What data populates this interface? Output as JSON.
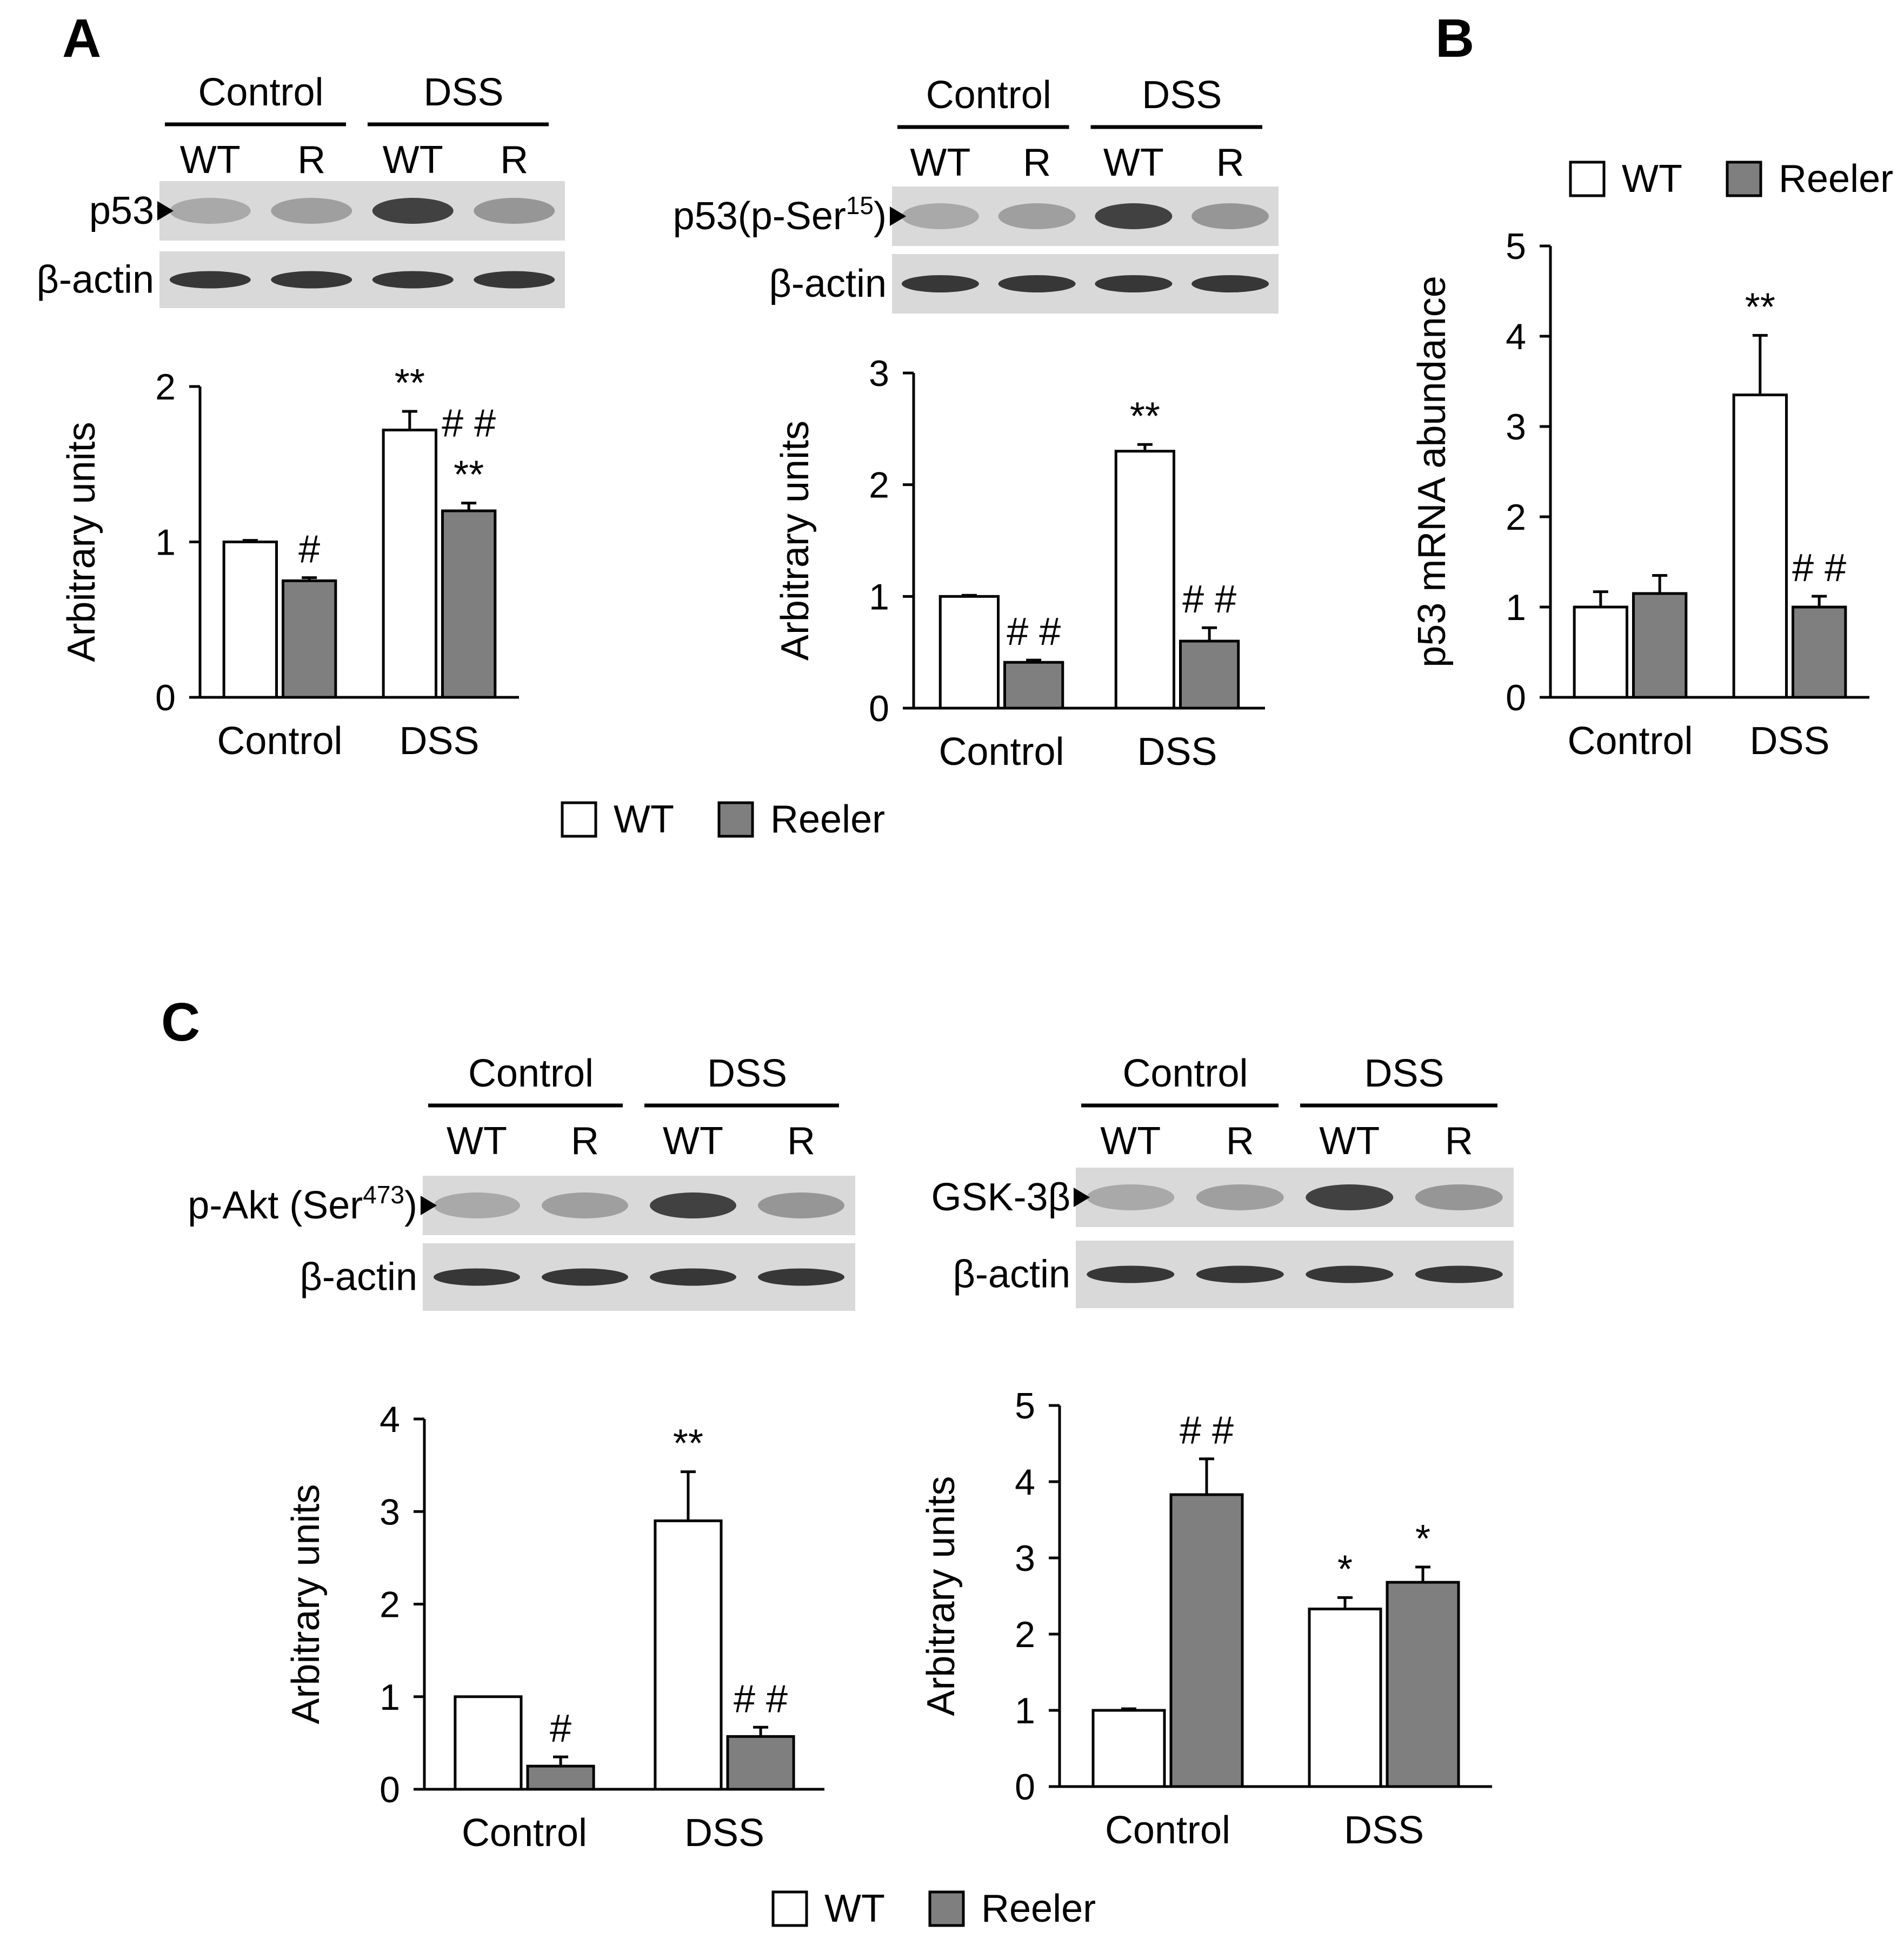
{
  "colors": {
    "wt_fill": "#ffffff",
    "reeler_fill": "#7f7f7f",
    "axis": "#000000",
    "blot_bg": "#d9d9d9"
  },
  "panels": [
    {
      "letter": "A"
    },
    {
      "letter": "B"
    },
    {
      "letter": "C"
    }
  ],
  "legend": {
    "wt": "WT",
    "reeler": "Reeler"
  },
  "blots": [
    {
      "groups": [
        "Control",
        "DSS"
      ],
      "lanes": [
        "WT",
        "R",
        "WT",
        "R"
      ],
      "rows": [
        {
          "label": "p53"
        },
        {
          "label": "β-actin"
        }
      ]
    },
    {
      "groups": [
        "Control",
        "DSS"
      ],
      "lanes": [
        "WT",
        "R",
        "WT",
        "R"
      ],
      "rows": [
        {
          "label": "p53(p-Ser",
          "sup": "15",
          "tail": ")"
        },
        {
          "label": "β-actin"
        }
      ]
    },
    {
      "groups": [
        "Control",
        "DSS"
      ],
      "lanes": [
        "WT",
        "R",
        "WT",
        "R"
      ],
      "rows": [
        {
          "label": "p-Akt (Ser",
          "sup": "473",
          "tail": ")"
        },
        {
          "label": "β-actin"
        }
      ]
    },
    {
      "groups": [
        "Control",
        "DSS"
      ],
      "lanes": [
        "WT",
        "R",
        "WT",
        "R"
      ],
      "rows": [
        {
          "label": "GSK-3β"
        },
        {
          "label": "β-actin"
        }
      ]
    }
  ],
  "chart_data": [
    {
      "type": "bar",
      "panel": "A",
      "categories": [
        "Control",
        "DSS"
      ],
      "series": [
        {
          "name": "WT",
          "values": [
            1.0,
            1.72
          ],
          "errors": [
            0.01,
            0.12
          ]
        },
        {
          "name": "Reeler",
          "values": [
            0.75,
            1.2
          ],
          "errors": [
            0.02,
            0.05
          ]
        }
      ],
      "annotations": [
        [
          "",
          "#"
        ],
        [
          "**",
          "# #\n**"
        ]
      ],
      "ylabel": "Arbitrary units",
      "ylim": [
        0,
        2
      ],
      "yticks": [
        "0",
        "1",
        "2"
      ]
    },
    {
      "type": "bar",
      "panel": "A",
      "categories": [
        "Control",
        "DSS"
      ],
      "series": [
        {
          "name": "WT",
          "values": [
            1.0,
            2.3
          ],
          "errors": [
            0.01,
            0.06
          ]
        },
        {
          "name": "Reeler",
          "values": [
            0.41,
            0.6
          ],
          "errors": [
            0.02,
            0.12
          ]
        }
      ],
      "annotations": [
        [
          "",
          "# #"
        ],
        [
          "**",
          "# #"
        ]
      ],
      "ylabel": "Arbitrary units",
      "ylim": [
        0,
        3
      ],
      "yticks": [
        "0",
        "1",
        "2",
        "3"
      ]
    },
    {
      "type": "bar",
      "panel": "B",
      "categories": [
        "Control",
        "DSS"
      ],
      "series": [
        {
          "name": "WT",
          "values": [
            1.0,
            3.35
          ],
          "errors": [
            0.17,
            0.66
          ]
        },
        {
          "name": "Reeler",
          "values": [
            1.15,
            1.0
          ],
          "errors": [
            0.2,
            0.12
          ]
        }
      ],
      "annotations": [
        [
          "",
          ""
        ],
        [
          "**",
          "# #"
        ]
      ],
      "ylabel": "p53 mRNA abundance",
      "ylim": [
        0,
        5
      ],
      "yticks": [
        "0",
        "1",
        "2",
        "3",
        "4",
        "5"
      ]
    },
    {
      "type": "bar",
      "panel": "C",
      "categories": [
        "Control",
        "DSS"
      ],
      "series": [
        {
          "name": "WT",
          "values": [
            1.0,
            2.9
          ],
          "errors": [
            0.0,
            0.53
          ]
        },
        {
          "name": "Reeler",
          "values": [
            0.25,
            0.57
          ],
          "errors": [
            0.1,
            0.1
          ]
        }
      ],
      "annotations": [
        [
          "",
          "#"
        ],
        [
          "**",
          "# #"
        ]
      ],
      "ylabel": "Arbitrary units",
      "ylim": [
        0,
        4
      ],
      "yticks": [
        "0",
        "1",
        "2",
        "3",
        "4"
      ]
    },
    {
      "type": "bar",
      "panel": "C",
      "categories": [
        "Control",
        "DSS"
      ],
      "series": [
        {
          "name": "WT",
          "values": [
            1.0,
            2.33
          ],
          "errors": [
            0.02,
            0.15
          ]
        },
        {
          "name": "Reeler",
          "values": [
            3.83,
            2.68
          ],
          "errors": [
            0.47,
            0.2
          ]
        }
      ],
      "annotations": [
        [
          "",
          "# #"
        ],
        [
          "*",
          "*"
        ]
      ],
      "ylabel": "Arbitrary units",
      "ylim": [
        0,
        5
      ],
      "yticks": [
        "0",
        "1",
        "2",
        "3",
        "4",
        "5"
      ]
    }
  ]
}
